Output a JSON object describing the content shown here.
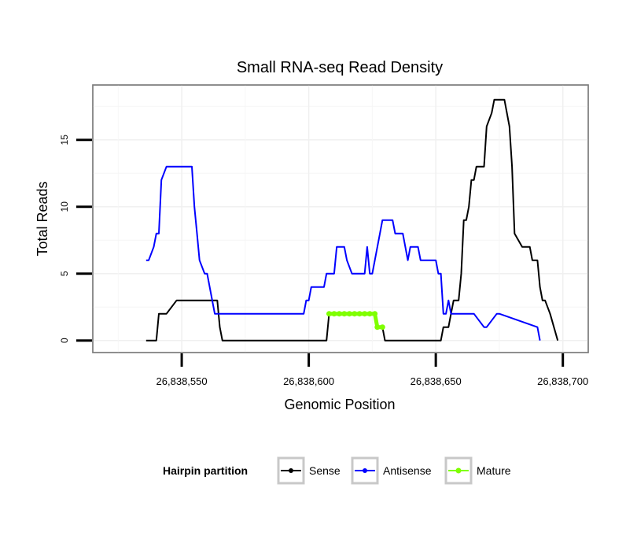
{
  "chart_data": {
    "type": "line",
    "title": "Small RNA-seq Read Density",
    "xlabel": "Genomic Position",
    "ylabel": "Total Reads",
    "xlim": [
      26838515,
      26838710
    ],
    "ylim": [
      -0.9,
      19.1
    ],
    "x_ticks": [
      26838550,
      26838600,
      26838650,
      26838700
    ],
    "x_tick_labels": [
      "26,838,550",
      "26,838,600",
      "26,838,650",
      "26,838,700"
    ],
    "y_ticks": [
      0,
      5,
      10,
      15
    ],
    "y_tick_labels": [
      "0",
      "5",
      "10",
      "15"
    ],
    "grid": true,
    "legend": {
      "title": "Hairpin partition",
      "placement": "bottom",
      "entries": [
        "Sense",
        "Antisense",
        "Mature"
      ]
    },
    "series": [
      {
        "name": "Sense",
        "color": "#000000",
        "x": [
          26838536,
          26838540,
          26838541,
          26838543,
          26838544,
          26838548,
          26838553,
          26838564,
          26838565,
          26838566,
          26838607,
          26838608,
          26838626,
          26838627,
          26838629,
          26838630,
          26838652,
          26838653,
          26838655,
          26838656,
          26838657,
          26838659,
          26838660,
          26838661,
          26838662,
          26838663,
          26838664,
          26838665,
          26838666,
          26838669,
          26838670,
          26838672,
          26838673,
          26838677,
          26838678,
          26838679,
          26838680,
          26838681,
          26838684,
          26838685,
          26838686,
          26838687,
          26838688,
          26838690,
          26838691,
          26838692,
          26838693,
          26838695,
          26838698
        ],
        "y": [
          0,
          0,
          2,
          2,
          2,
          3,
          3,
          3,
          1,
          0,
          0,
          2,
          2,
          1,
          1,
          0,
          0,
          1,
          1,
          2,
          3,
          3,
          5,
          9,
          9,
          10,
          12,
          12,
          13,
          13,
          16,
          17,
          18,
          18,
          17,
          16,
          13,
          8,
          7,
          7,
          7,
          7,
          6,
          6,
          4,
          3,
          3,
          2,
          0
        ]
      },
      {
        "name": "Antisense",
        "color": "#0000ff",
        "x": [
          26838536,
          26838537,
          26838539,
          26838540,
          26838541,
          26838542,
          26838544,
          26838547,
          26838548,
          26838549,
          26838550,
          26838551,
          26838553,
          26838554,
          26838555,
          26838556,
          26838557,
          26838559,
          26838560,
          26838563,
          26838564,
          26838565,
          26838568,
          26838598,
          26838599,
          26838600,
          26838601,
          26838606,
          26838607,
          26838610,
          26838611,
          26838614,
          26838615,
          26838617,
          26838622,
          26838623,
          26838624,
          26838625,
          26838628,
          26838629,
          26838630,
          26838633,
          26838634,
          26838637,
          26838638,
          26838639,
          26838640,
          26838643,
          26838644,
          26838650,
          26838651,
          26838652,
          26838653,
          26838654,
          26838655,
          26838656,
          26838657,
          26838664,
          26838665,
          26838669,
          26838670,
          26838674,
          26838675,
          26838690,
          26838691
        ],
        "y": [
          6,
          6,
          7,
          8,
          8,
          12,
          13,
          13,
          13,
          13,
          13,
          13,
          13,
          13,
          10,
          8,
          6,
          5,
          5,
          2,
          2,
          2,
          2,
          2,
          3,
          3,
          4,
          4,
          5,
          5,
          7,
          7,
          6,
          5,
          5,
          7,
          5,
          5,
          8,
          9,
          9,
          9,
          8,
          8,
          7,
          6,
          7,
          7,
          6,
          6,
          5,
          5,
          2,
          2,
          3,
          2,
          2,
          2,
          2,
          1,
          1,
          2,
          2,
          1,
          0
        ]
      },
      {
        "name": "Mature",
        "color": "#7fff00",
        "x": [
          26838608,
          26838610,
          26838612,
          26838614,
          26838616,
          26838618,
          26838620,
          26838622,
          26838624,
          26838626,
          26838627,
          26838629
        ],
        "y": [
          2,
          2,
          2,
          2,
          2,
          2,
          2,
          2,
          2,
          2,
          1,
          1
        ]
      }
    ]
  }
}
